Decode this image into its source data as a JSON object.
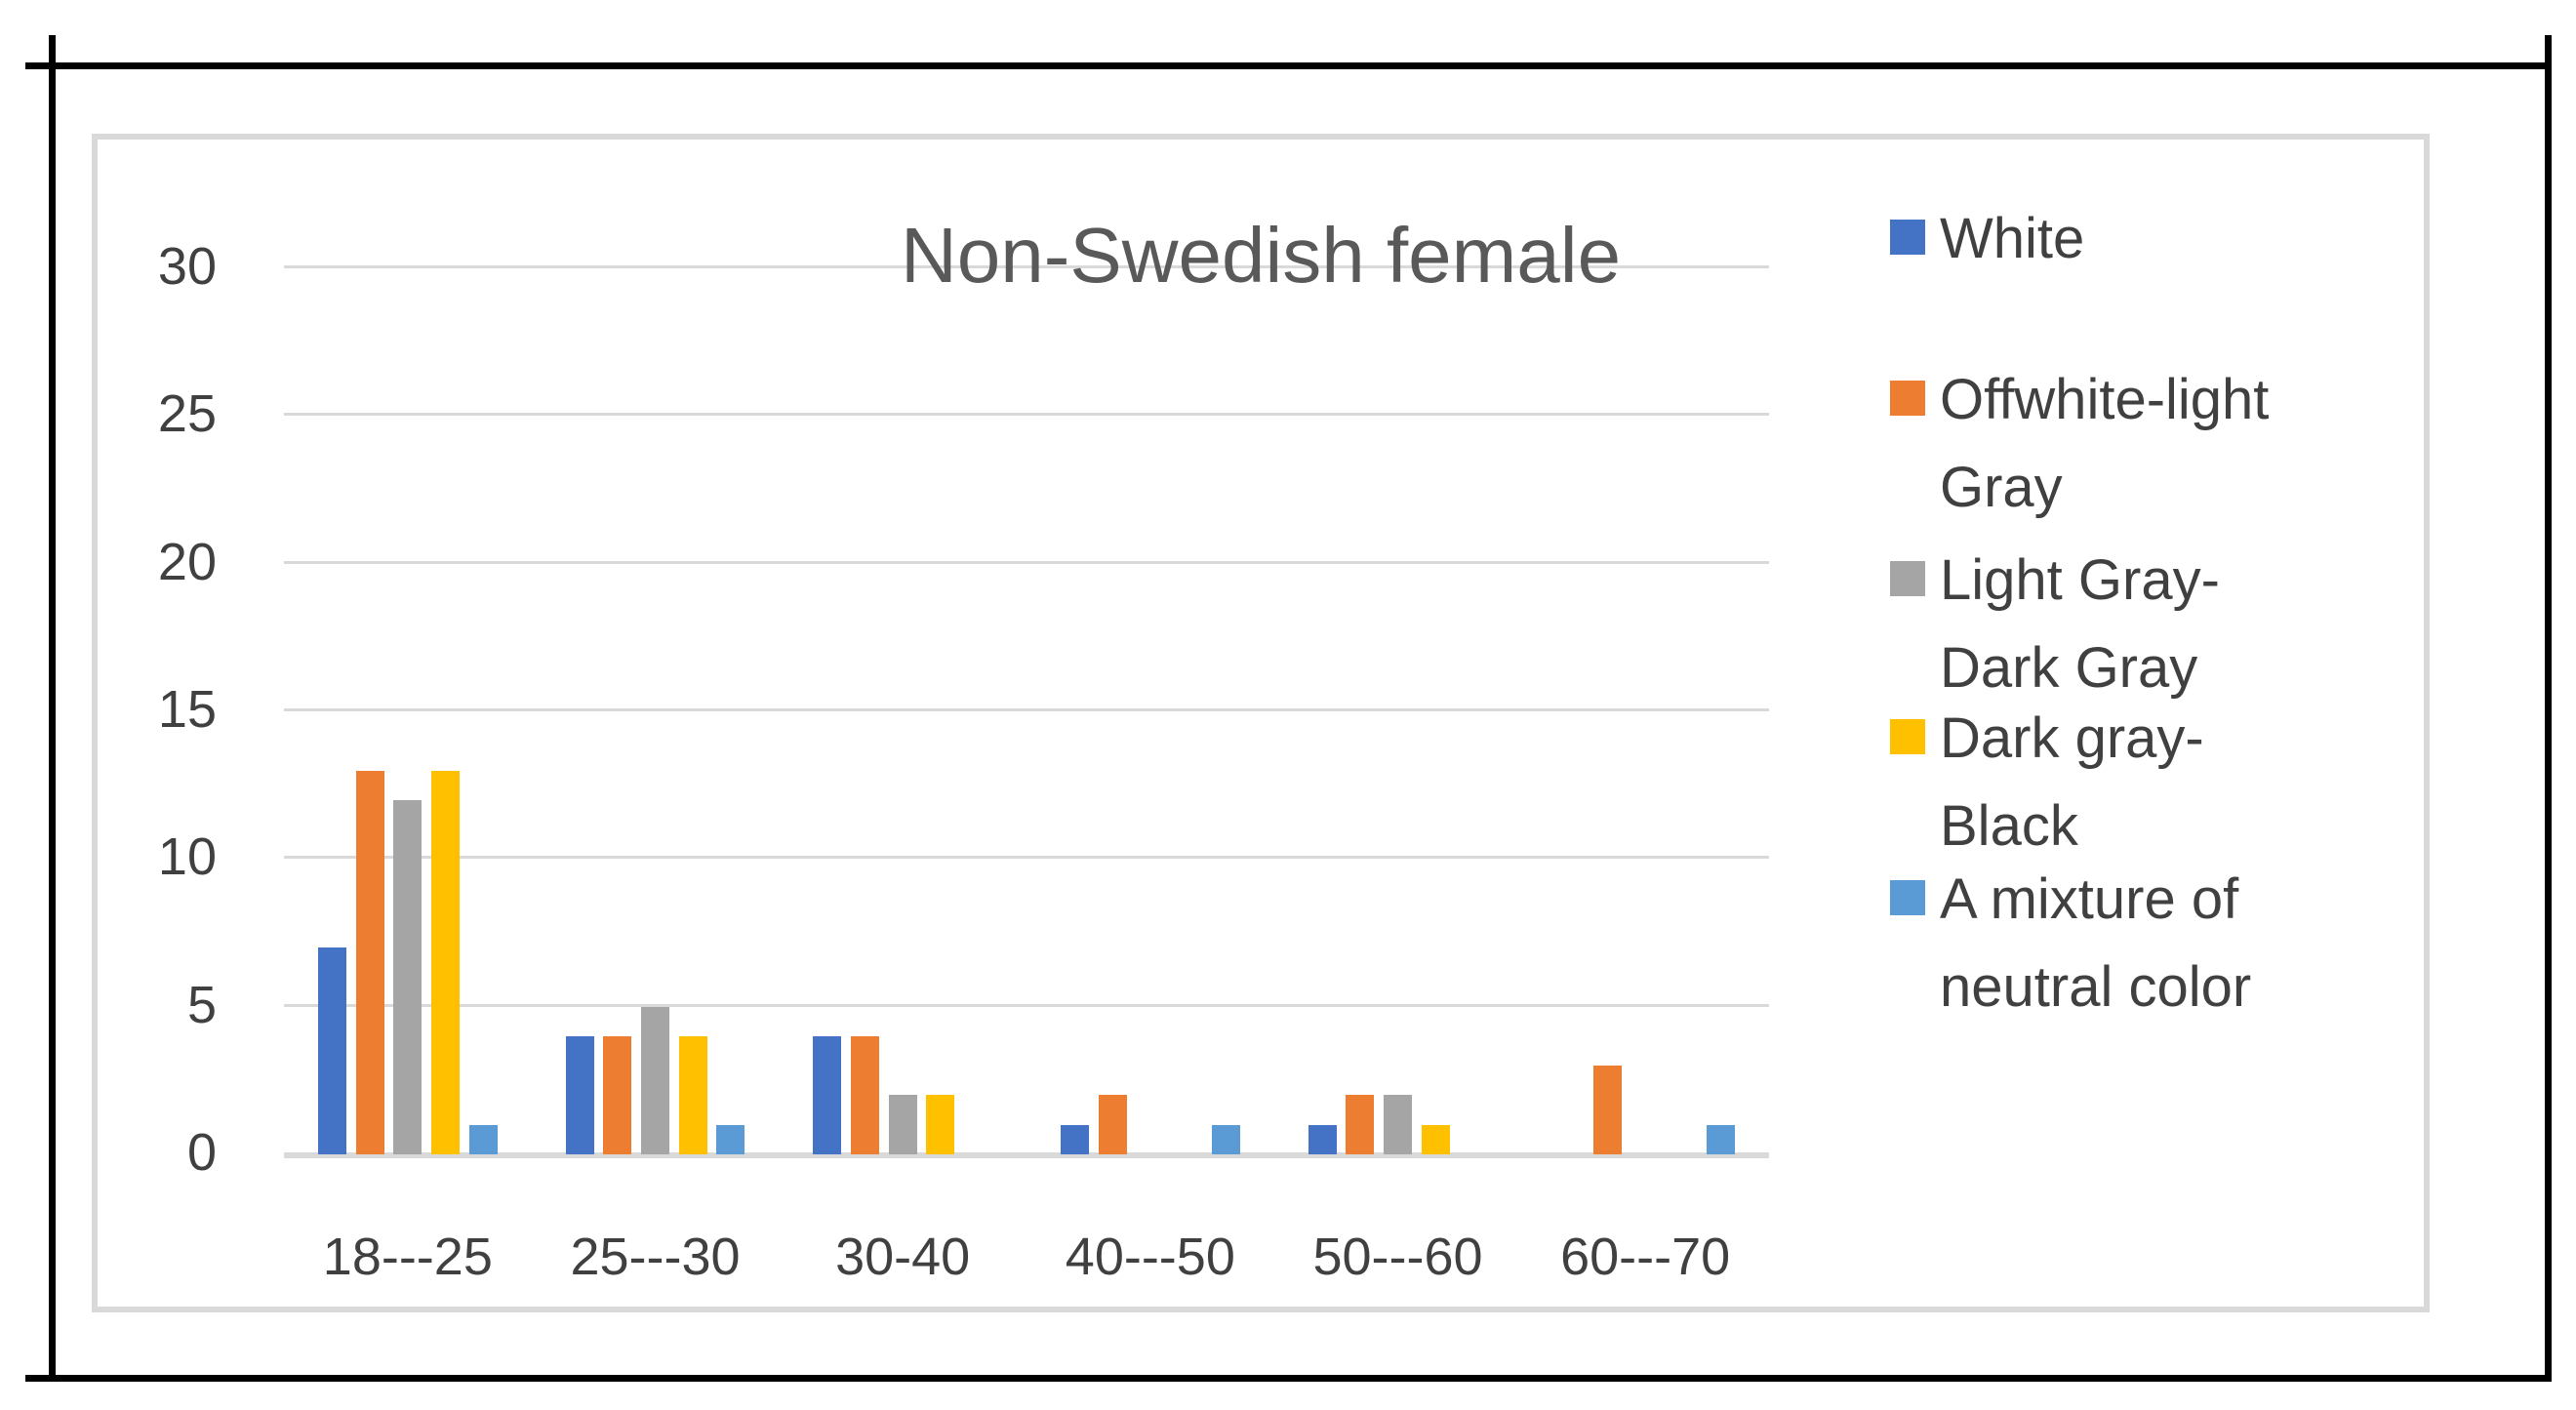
{
  "chart_data": {
    "type": "bar",
    "title": "Non-Swedish female",
    "categories": [
      "18---25",
      "25---30",
      "30-40",
      "40---50",
      "50---60",
      "60---70"
    ],
    "series": [
      {
        "name": "White",
        "color": "#4472C4",
        "legend_lines": [
          "White"
        ],
        "values": [
          7,
          4,
          4,
          1,
          1,
          0
        ]
      },
      {
        "name": "Offwhite-light Gray",
        "color": "#ED7D31",
        "legend_lines": [
          "Offwhite-light",
          "Gray"
        ],
        "values": [
          13,
          4,
          4,
          2,
          2,
          3
        ]
      },
      {
        "name": "Light Gray-Dark Gray",
        "color": "#A5A5A5",
        "legend_lines": [
          "Light Gray-",
          "Dark Gray"
        ],
        "values": [
          12,
          5,
          2,
          0,
          2,
          0
        ]
      },
      {
        "name": "Dark gray-Black",
        "color": "#FFC000",
        "legend_lines": [
          "Dark gray-",
          "Black"
        ],
        "values": [
          13,
          4,
          2,
          0,
          1,
          0
        ]
      },
      {
        "name": "A mixture of neutral color",
        "color": "#5B9BD5",
        "legend_lines": [
          "A mixture of",
          "neutral color"
        ],
        "values": [
          1,
          1,
          0,
          1,
          0,
          1
        ]
      }
    ],
    "yticks": [
      0,
      5,
      10,
      15,
      20,
      25,
      30
    ],
    "ylim": [
      0,
      30
    ],
    "grid": true,
    "legend_position": "right",
    "colors": {
      "gridline": "#D9D9D9",
      "baseline": "#D9D9D9",
      "axis_text": "#404040",
      "title_text": "#595959",
      "chart_border": "#D9D9D9",
      "page_border": "#000000"
    }
  }
}
